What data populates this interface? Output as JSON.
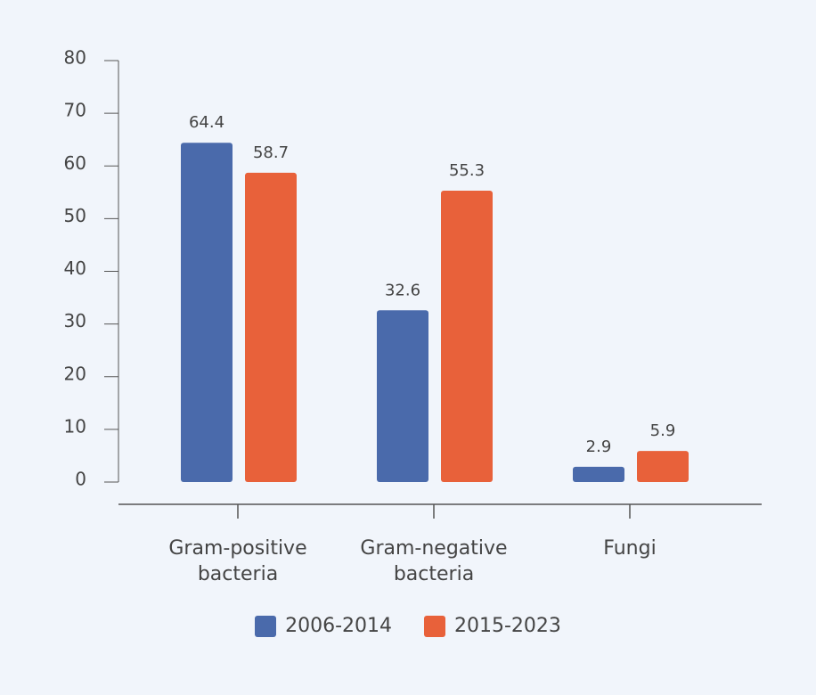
{
  "chart_data": {
    "type": "bar",
    "categories": [
      "Gram-positive bacteria",
      "Gram-negative bacteria",
      "Fungi"
    ],
    "series": [
      {
        "name": "2006-2014",
        "color": "#4a6aab",
        "values": [
          64.4,
          32.6,
          2.9
        ]
      },
      {
        "name": "2015-2023",
        "color": "#e8613a",
        "values": [
          58.7,
          55.3,
          5.9
        ]
      }
    ],
    "ylim": [
      0,
      80
    ],
    "yticks": [
      0,
      10,
      20,
      30,
      40,
      50,
      60,
      70,
      80
    ],
    "grid": false
  }
}
